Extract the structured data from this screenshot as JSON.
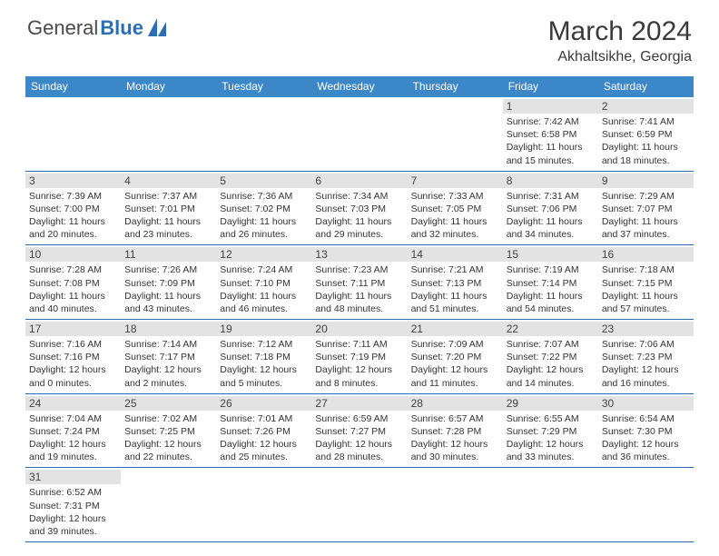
{
  "logo": {
    "part1": "General",
    "part2": "Blue"
  },
  "title": {
    "month_year": "March 2024",
    "location": "Akhaltsikhe, Georgia"
  },
  "weekdays": [
    "Sunday",
    "Monday",
    "Tuesday",
    "Wednesday",
    "Thursday",
    "Friday",
    "Saturday"
  ],
  "colors": {
    "header_bg": "#3c87c7",
    "row_border": "#2a6fb5",
    "daynum_bg": "#e3e3e3",
    "logo_gray": "#4a4a4a",
    "logo_blue": "#2a6fb5"
  },
  "weeks": [
    [
      null,
      null,
      null,
      null,
      null,
      {
        "d": "1",
        "sr": "Sunrise: 7:42 AM",
        "ss": "Sunset: 6:58 PM",
        "dl1": "Daylight: 11 hours",
        "dl2": "and 15 minutes."
      },
      {
        "d": "2",
        "sr": "Sunrise: 7:41 AM",
        "ss": "Sunset: 6:59 PM",
        "dl1": "Daylight: 11 hours",
        "dl2": "and 18 minutes."
      }
    ],
    [
      {
        "d": "3",
        "sr": "Sunrise: 7:39 AM",
        "ss": "Sunset: 7:00 PM",
        "dl1": "Daylight: 11 hours",
        "dl2": "and 20 minutes."
      },
      {
        "d": "4",
        "sr": "Sunrise: 7:37 AM",
        "ss": "Sunset: 7:01 PM",
        "dl1": "Daylight: 11 hours",
        "dl2": "and 23 minutes."
      },
      {
        "d": "5",
        "sr": "Sunrise: 7:36 AM",
        "ss": "Sunset: 7:02 PM",
        "dl1": "Daylight: 11 hours",
        "dl2": "and 26 minutes."
      },
      {
        "d": "6",
        "sr": "Sunrise: 7:34 AM",
        "ss": "Sunset: 7:03 PM",
        "dl1": "Daylight: 11 hours",
        "dl2": "and 29 minutes."
      },
      {
        "d": "7",
        "sr": "Sunrise: 7:33 AM",
        "ss": "Sunset: 7:05 PM",
        "dl1": "Daylight: 11 hours",
        "dl2": "and 32 minutes."
      },
      {
        "d": "8",
        "sr": "Sunrise: 7:31 AM",
        "ss": "Sunset: 7:06 PM",
        "dl1": "Daylight: 11 hours",
        "dl2": "and 34 minutes."
      },
      {
        "d": "9",
        "sr": "Sunrise: 7:29 AM",
        "ss": "Sunset: 7:07 PM",
        "dl1": "Daylight: 11 hours",
        "dl2": "and 37 minutes."
      }
    ],
    [
      {
        "d": "10",
        "sr": "Sunrise: 7:28 AM",
        "ss": "Sunset: 7:08 PM",
        "dl1": "Daylight: 11 hours",
        "dl2": "and 40 minutes."
      },
      {
        "d": "11",
        "sr": "Sunrise: 7:26 AM",
        "ss": "Sunset: 7:09 PM",
        "dl1": "Daylight: 11 hours",
        "dl2": "and 43 minutes."
      },
      {
        "d": "12",
        "sr": "Sunrise: 7:24 AM",
        "ss": "Sunset: 7:10 PM",
        "dl1": "Daylight: 11 hours",
        "dl2": "and 46 minutes."
      },
      {
        "d": "13",
        "sr": "Sunrise: 7:23 AM",
        "ss": "Sunset: 7:11 PM",
        "dl1": "Daylight: 11 hours",
        "dl2": "and 48 minutes."
      },
      {
        "d": "14",
        "sr": "Sunrise: 7:21 AM",
        "ss": "Sunset: 7:13 PM",
        "dl1": "Daylight: 11 hours",
        "dl2": "and 51 minutes."
      },
      {
        "d": "15",
        "sr": "Sunrise: 7:19 AM",
        "ss": "Sunset: 7:14 PM",
        "dl1": "Daylight: 11 hours",
        "dl2": "and 54 minutes."
      },
      {
        "d": "16",
        "sr": "Sunrise: 7:18 AM",
        "ss": "Sunset: 7:15 PM",
        "dl1": "Daylight: 11 hours",
        "dl2": "and 57 minutes."
      }
    ],
    [
      {
        "d": "17",
        "sr": "Sunrise: 7:16 AM",
        "ss": "Sunset: 7:16 PM",
        "dl1": "Daylight: 12 hours",
        "dl2": "and 0 minutes."
      },
      {
        "d": "18",
        "sr": "Sunrise: 7:14 AM",
        "ss": "Sunset: 7:17 PM",
        "dl1": "Daylight: 12 hours",
        "dl2": "and 2 minutes."
      },
      {
        "d": "19",
        "sr": "Sunrise: 7:12 AM",
        "ss": "Sunset: 7:18 PM",
        "dl1": "Daylight: 12 hours",
        "dl2": "and 5 minutes."
      },
      {
        "d": "20",
        "sr": "Sunrise: 7:11 AM",
        "ss": "Sunset: 7:19 PM",
        "dl1": "Daylight: 12 hours",
        "dl2": "and 8 minutes."
      },
      {
        "d": "21",
        "sr": "Sunrise: 7:09 AM",
        "ss": "Sunset: 7:20 PM",
        "dl1": "Daylight: 12 hours",
        "dl2": "and 11 minutes."
      },
      {
        "d": "22",
        "sr": "Sunrise: 7:07 AM",
        "ss": "Sunset: 7:22 PM",
        "dl1": "Daylight: 12 hours",
        "dl2": "and 14 minutes."
      },
      {
        "d": "23",
        "sr": "Sunrise: 7:06 AM",
        "ss": "Sunset: 7:23 PM",
        "dl1": "Daylight: 12 hours",
        "dl2": "and 16 minutes."
      }
    ],
    [
      {
        "d": "24",
        "sr": "Sunrise: 7:04 AM",
        "ss": "Sunset: 7:24 PM",
        "dl1": "Daylight: 12 hours",
        "dl2": "and 19 minutes."
      },
      {
        "d": "25",
        "sr": "Sunrise: 7:02 AM",
        "ss": "Sunset: 7:25 PM",
        "dl1": "Daylight: 12 hours",
        "dl2": "and 22 minutes."
      },
      {
        "d": "26",
        "sr": "Sunrise: 7:01 AM",
        "ss": "Sunset: 7:26 PM",
        "dl1": "Daylight: 12 hours",
        "dl2": "and 25 minutes."
      },
      {
        "d": "27",
        "sr": "Sunrise: 6:59 AM",
        "ss": "Sunset: 7:27 PM",
        "dl1": "Daylight: 12 hours",
        "dl2": "and 28 minutes."
      },
      {
        "d": "28",
        "sr": "Sunrise: 6:57 AM",
        "ss": "Sunset: 7:28 PM",
        "dl1": "Daylight: 12 hours",
        "dl2": "and 30 minutes."
      },
      {
        "d": "29",
        "sr": "Sunrise: 6:55 AM",
        "ss": "Sunset: 7:29 PM",
        "dl1": "Daylight: 12 hours",
        "dl2": "and 33 minutes."
      },
      {
        "d": "30",
        "sr": "Sunrise: 6:54 AM",
        "ss": "Sunset: 7:30 PM",
        "dl1": "Daylight: 12 hours",
        "dl2": "and 36 minutes."
      }
    ],
    [
      {
        "d": "31",
        "sr": "Sunrise: 6:52 AM",
        "ss": "Sunset: 7:31 PM",
        "dl1": "Daylight: 12 hours",
        "dl2": "and 39 minutes."
      },
      null,
      null,
      null,
      null,
      null,
      null
    ]
  ]
}
